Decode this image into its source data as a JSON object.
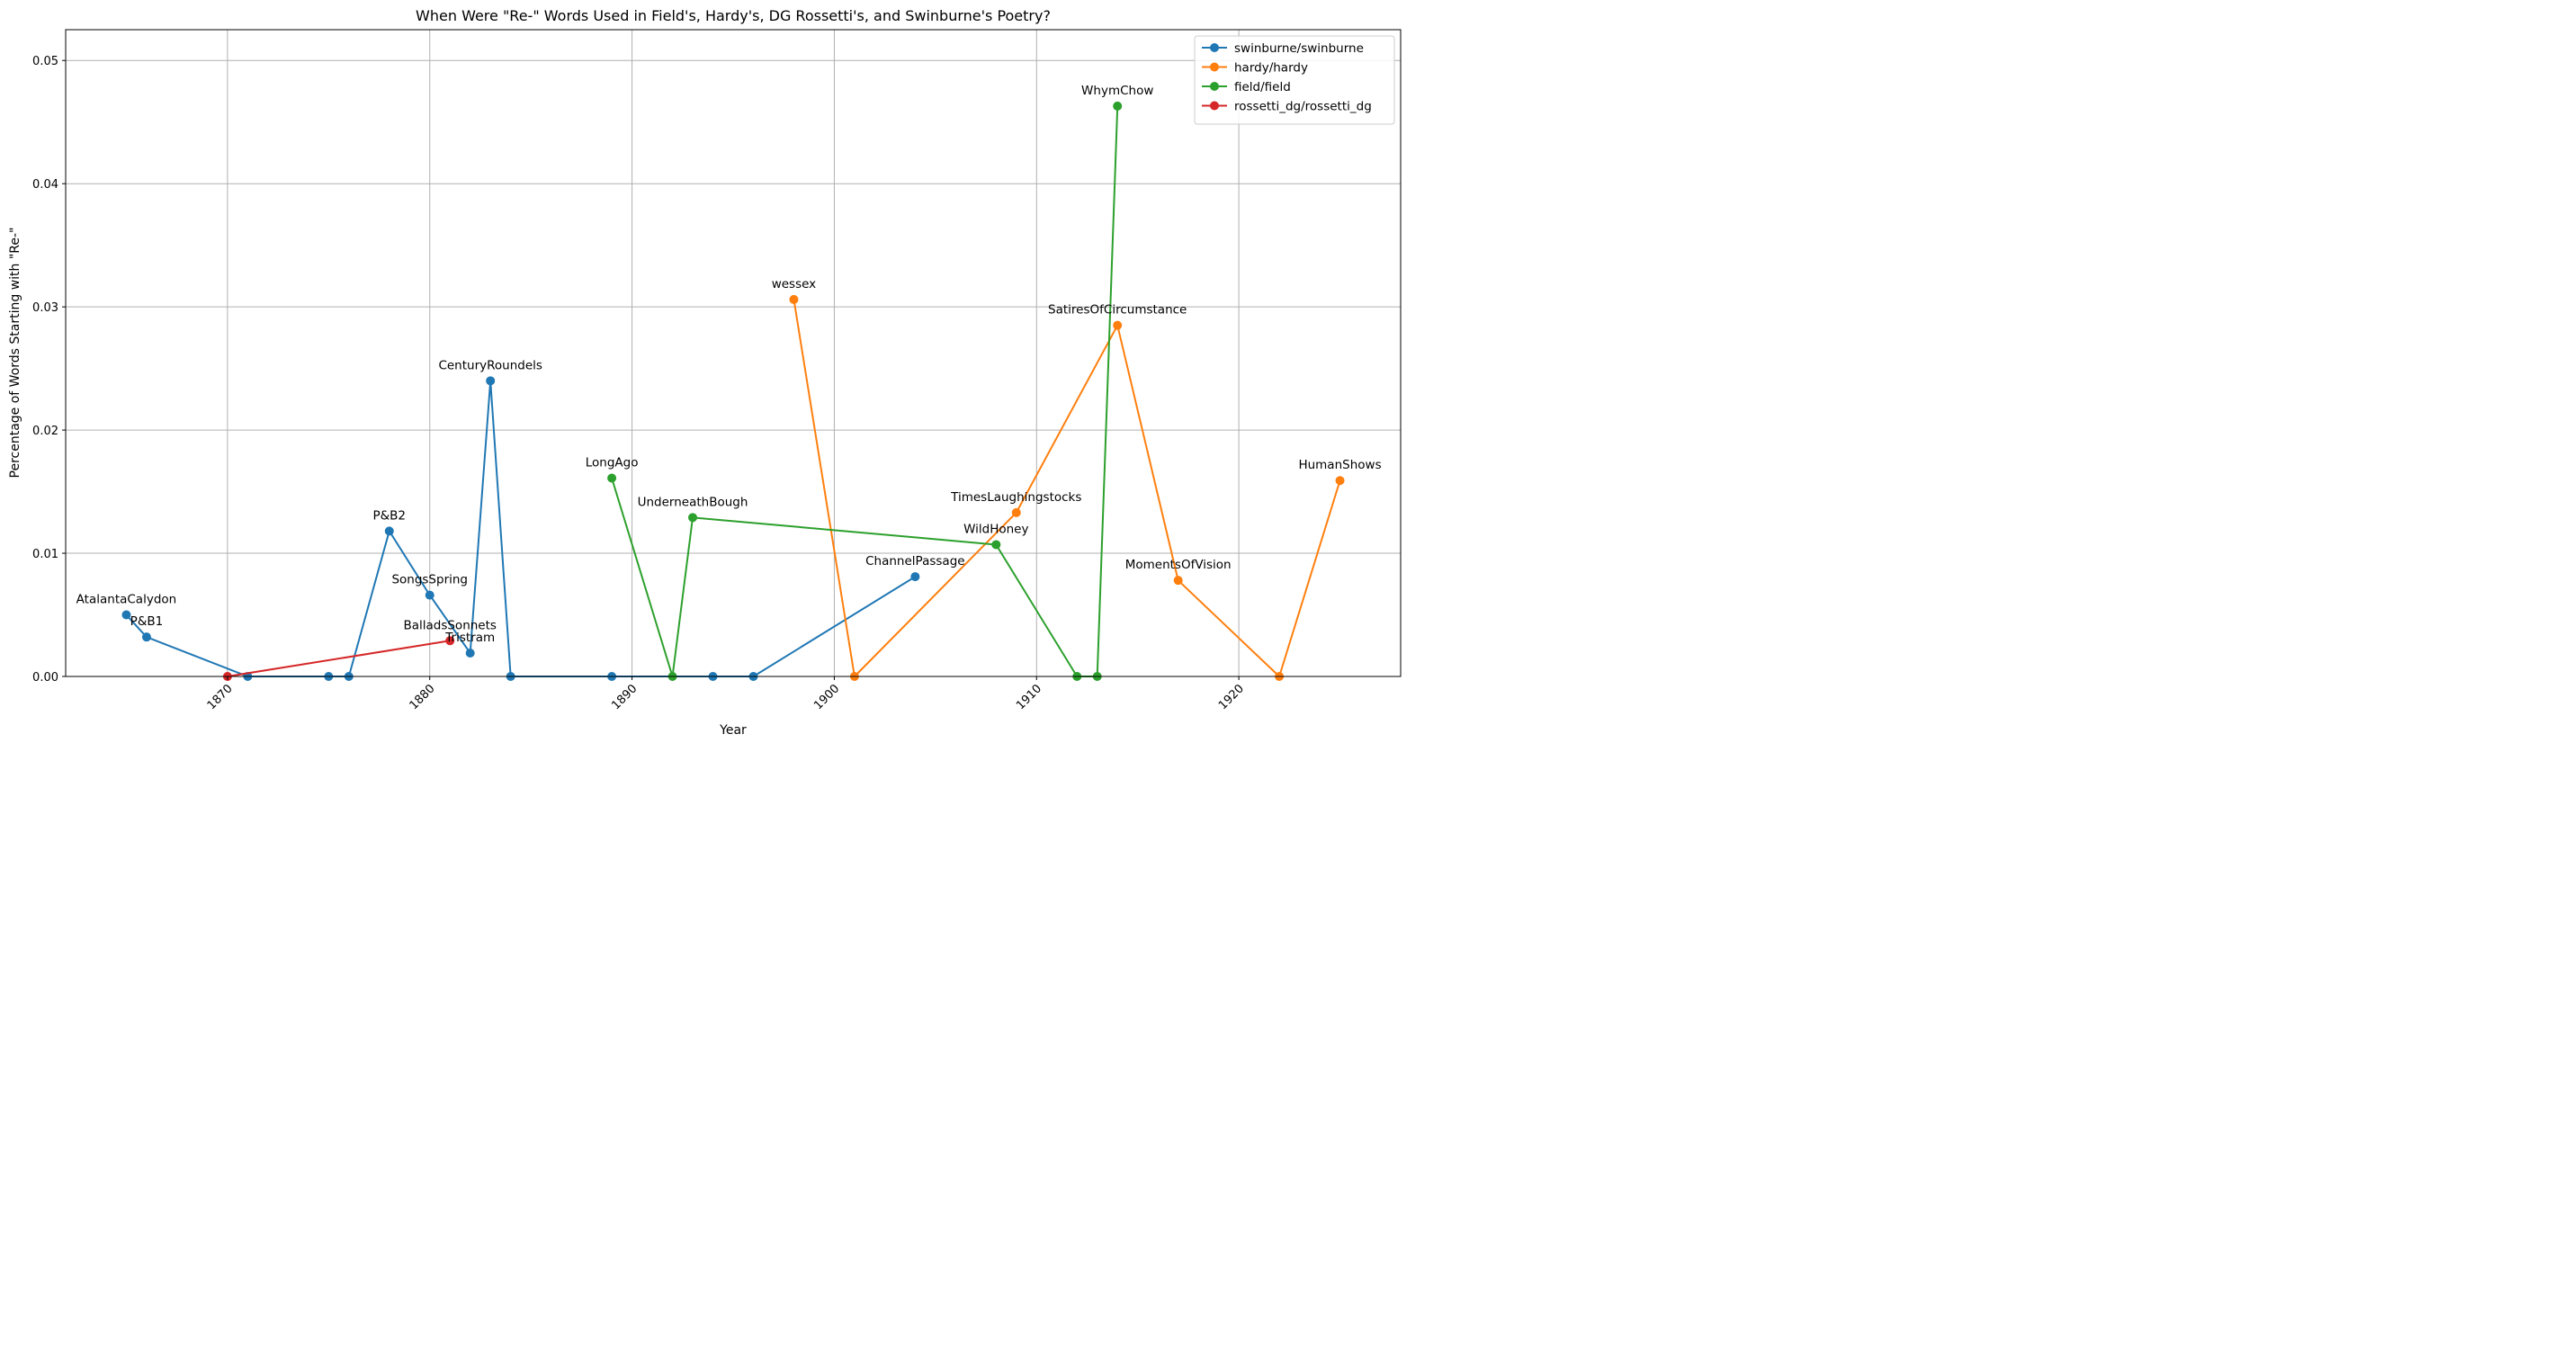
{
  "chart_data": {
    "type": "line",
    "title": "When Were \"Re-\" Words Used in Field's, Hardy's, DG Rossetti's, and Swinburne's Poetry?",
    "xlabel": "Year",
    "ylabel": "Percentage of Words Starting with \"Re-\"",
    "xlim": [
      1862,
      1928
    ],
    "ylim": [
      0,
      0.0525
    ],
    "xticks": [
      1870,
      1880,
      1890,
      1900,
      1910,
      1920
    ],
    "yticks": [
      0.0,
      0.01,
      0.02,
      0.03,
      0.04,
      0.05
    ],
    "ytick_labels": [
      "0.00",
      "0.01",
      "0.02",
      "0.03",
      "0.04",
      "0.05"
    ],
    "grid": true,
    "legend_position": "top-right",
    "series": [
      {
        "name": "swinburne/swinburne",
        "color": "#1f77b4",
        "points": [
          {
            "x": 1865,
            "y": 0.005,
            "label": "AtalantaCalydon"
          },
          {
            "x": 1866,
            "y": 0.0032,
            "label": "P&B1"
          },
          {
            "x": 1871,
            "y": 0.0
          },
          {
            "x": 1875,
            "y": 0.0
          },
          {
            "x": 1876,
            "y": 0.0
          },
          {
            "x": 1878,
            "y": 0.0118,
            "label": "P&B2"
          },
          {
            "x": 1880,
            "y": 0.0066,
            "label": "SongsSpring"
          },
          {
            "x": 1882,
            "y": 0.0019,
            "label": "Tristram"
          },
          {
            "x": 1883,
            "y": 0.024,
            "label": "CenturyRoundels"
          },
          {
            "x": 1884,
            "y": 0.0
          },
          {
            "x": 1889,
            "y": 0.0
          },
          {
            "x": 1894,
            "y": 0.0
          },
          {
            "x": 1896,
            "y": 0.0
          },
          {
            "x": 1904,
            "y": 0.0081,
            "label": "ChannelPassage"
          }
        ]
      },
      {
        "name": "hardy/hardy",
        "color": "#ff7f0e",
        "points": [
          {
            "x": 1898,
            "y": 0.0306,
            "label": "wessex"
          },
          {
            "x": 1901,
            "y": 0.0
          },
          {
            "x": 1909,
            "y": 0.0133,
            "label": "TimesLaughingstocks"
          },
          {
            "x": 1914,
            "y": 0.0285,
            "label": "SatiresOfCircumstance"
          },
          {
            "x": 1917,
            "y": 0.0078,
            "label": "MomentsOfVision"
          },
          {
            "x": 1922,
            "y": 0.0
          },
          {
            "x": 1925,
            "y": 0.0159,
            "label": "HumanShows"
          }
        ]
      },
      {
        "name": "field/field",
        "color": "#2ca02c",
        "points": [
          {
            "x": 1889,
            "y": 0.0161,
            "label": "LongAgo"
          },
          {
            "x": 1892,
            "y": 0.0
          },
          {
            "x": 1893,
            "y": 0.0129,
            "label": "UnderneathBough"
          },
          {
            "x": 1908,
            "y": 0.0107,
            "label": "WildHoney"
          },
          {
            "x": 1912,
            "y": 0.0
          },
          {
            "x": 1913,
            "y": 0.0
          },
          {
            "x": 1914,
            "y": 0.0463,
            "label": "WhymChow"
          }
        ]
      },
      {
        "name": "rossetti_dg/rossetti_dg",
        "color": "#d62728",
        "points": [
          {
            "x": 1870,
            "y": 0.0
          },
          {
            "x": 1881,
            "y": 0.0029,
            "label": "BalladsSonnets"
          }
        ]
      }
    ]
  }
}
